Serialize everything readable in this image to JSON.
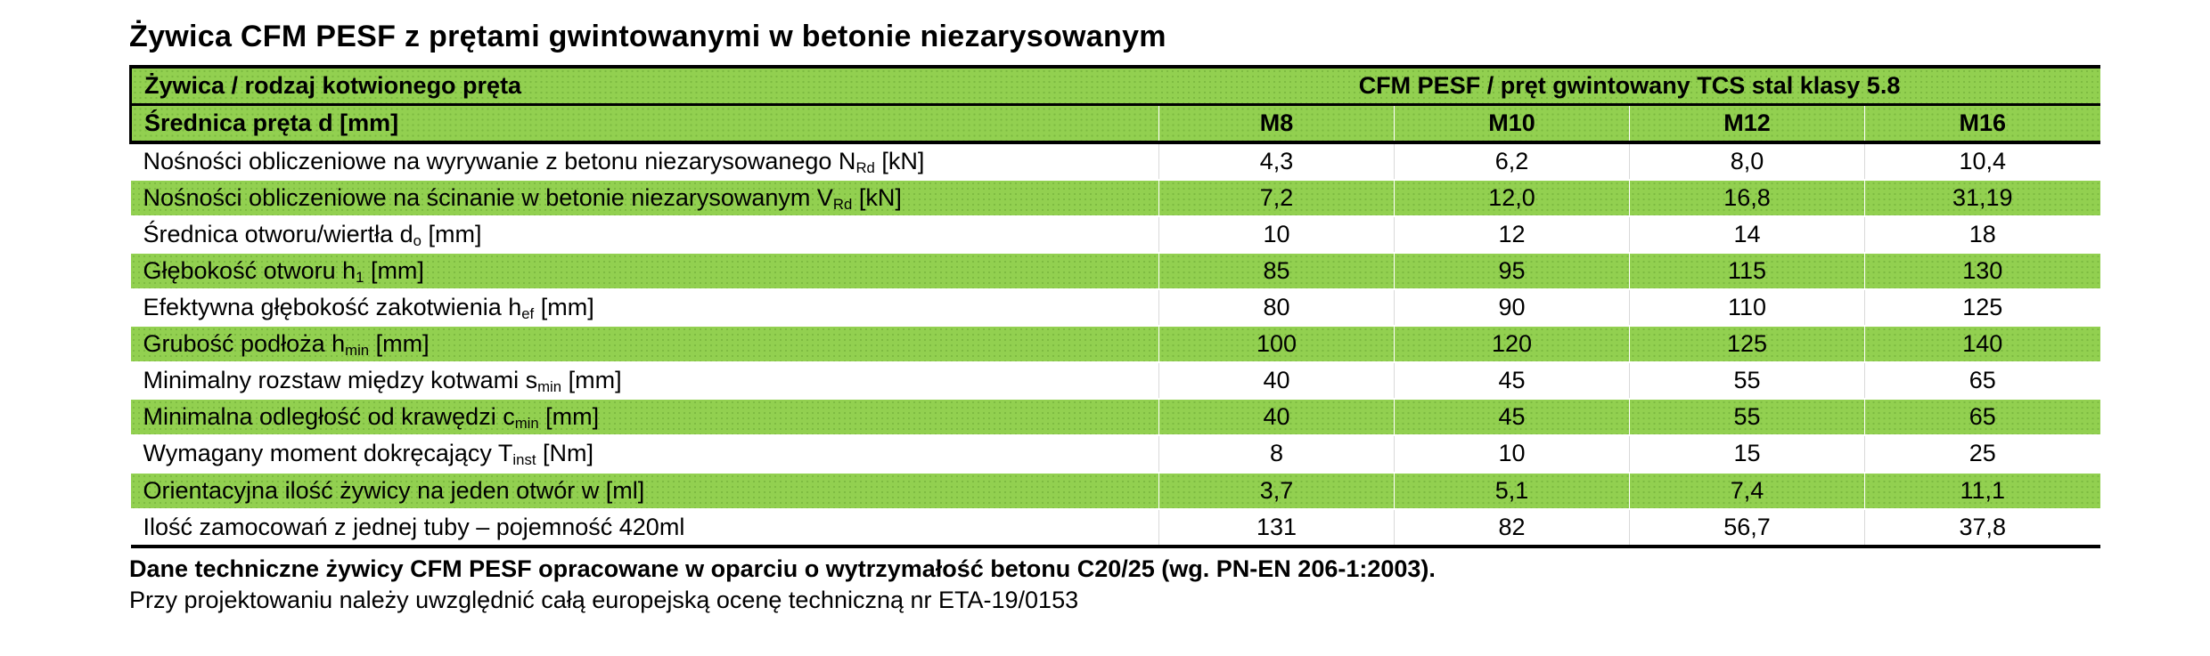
{
  "title": "Żywica CFM PESF z prętami gwintowanymi w betonie niezarysowanym",
  "colors": {
    "accent_green": "#92d050",
    "border_black": "#000000",
    "background": "#ffffff",
    "text": "#000000"
  },
  "table": {
    "header_left": "Żywica / rodzaj kotwionego pręta",
    "header_right": "CFM PESF / pręt gwintowany TCS stal klasy 5.8",
    "subheader_left": "Średnica pręta d [mm]",
    "columns": [
      "M8",
      "M10",
      "M12",
      "M16"
    ],
    "rows": [
      {
        "label": "Nośności obliczeniowe na wyrywanie z betonu niezarysowanego N",
        "sub": "Rd",
        "unit": " [kN]",
        "shade": "white",
        "values": [
          "4,3",
          "6,2",
          "8,0",
          "10,4"
        ]
      },
      {
        "label": "Nośności obliczeniowe na ścinanie w betonie niezarysowanym V",
        "sub": "Rd",
        "unit": " [kN]",
        "shade": "green",
        "values": [
          "7,2",
          "12,0",
          "16,8",
          "31,19"
        ]
      },
      {
        "label": "Średnica otworu/wiertła d",
        "sub": "o",
        "unit": " [mm]",
        "shade": "white",
        "values": [
          "10",
          "12",
          "14",
          "18"
        ]
      },
      {
        "label": "Głębokość otworu h",
        "sub": "1",
        "unit": " [mm]",
        "shade": "green",
        "values": [
          "85",
          "95",
          "115",
          "130"
        ]
      },
      {
        "label": "Efektywna głębokość zakotwienia h",
        "sub": "ef",
        "unit": " [mm]",
        "shade": "white",
        "values": [
          "80",
          "90",
          "110",
          "125"
        ]
      },
      {
        "label": "Grubość podłoża h",
        "sub": "min",
        "unit": " [mm]",
        "shade": "green",
        "values": [
          "100",
          "120",
          "125",
          "140"
        ]
      },
      {
        "label": "Minimalny rozstaw między kotwami s",
        "sub": "min",
        "unit": " [mm]",
        "shade": "white",
        "values": [
          "40",
          "45",
          "55",
          "65"
        ]
      },
      {
        "label": "Minimalna odległość od krawędzi c",
        "sub": "min",
        "unit": " [mm]",
        "shade": "green",
        "values": [
          "40",
          "45",
          "55",
          "65"
        ]
      },
      {
        "label": "Wymagany moment dokręcający T",
        "sub": "inst",
        "unit": " [Nm]",
        "shade": "white",
        "values": [
          "8",
          "10",
          "15",
          "25"
        ]
      },
      {
        "label": "Orientacyjna ilość żywicy na jeden otwór w [ml]",
        "sub": "",
        "unit": "",
        "shade": "green",
        "values": [
          "3,7",
          "5,1",
          "7,4",
          "11,1"
        ]
      },
      {
        "label": "Ilość zamocowań z jednej tuby – pojemność 420ml",
        "sub": "",
        "unit": "",
        "shade": "white",
        "values": [
          "131",
          "82",
          "56,7",
          "37,8"
        ]
      }
    ]
  },
  "footer": {
    "bold_note": "Dane techniczne żywicy CFM PESF opracowane w oparciu o wytrzymałość betonu C20/25 (wg. PN-EN 206-1:2003).",
    "note": "Przy projektowaniu należy uwzględnić całą europejską ocenę techniczną nr ETA-19/0153"
  }
}
